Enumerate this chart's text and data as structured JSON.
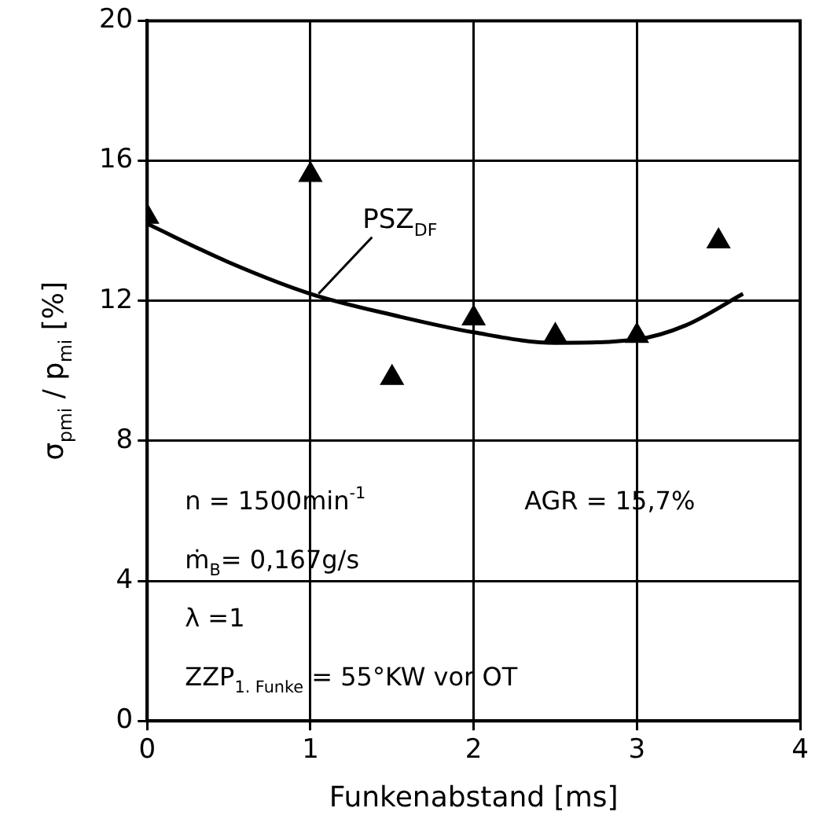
{
  "chart_data": {
    "type": "scatter",
    "xlabel": "Funkenabstand [ms]",
    "ylabel": "σ$_{pmi}$ / p$_{mi}$ [%]",
    "xlim": [
      0,
      4
    ],
    "xticks": [
      0,
      1,
      2,
      3,
      4
    ],
    "ylim": [
      0,
      20
    ],
    "yticks": [
      0,
      4,
      8,
      12,
      16,
      20
    ],
    "grid": true,
    "legend": false,
    "marker": "triangle",
    "series": [
      {
        "color": "#000000",
        "x": [
          0,
          1,
          1.5,
          2,
          2.5,
          3,
          3.5
        ],
        "values": [
          14.4,
          15.6,
          9.8,
          11.5,
          11,
          11,
          13.7
        ]
      },
      {
        "type": "line",
        "color": "#000000",
        "marker": "none",
        "x": [
          0,
          0.5,
          1,
          1.5,
          2,
          2.5,
          3,
          3.3,
          3.65
        ],
        "values": [
          14.2,
          13.1,
          12.2,
          11.6,
          11.1,
          10.8,
          10.9,
          11.3,
          12.2
        ]
      }
    ],
    "annotations": [
      {
        "text": "PSZ$_{DF}$",
        "x": 1.05,
        "y": 12.2
      },
      "n = 1500min$^{-1}$",
      "AGR = 15,7%",
      "ṁ$_{B}$= 0,167g/s",
      "λ =1",
      "ZZP$_{1. Funke}$ = 55°KW vor OT"
    ]
  }
}
